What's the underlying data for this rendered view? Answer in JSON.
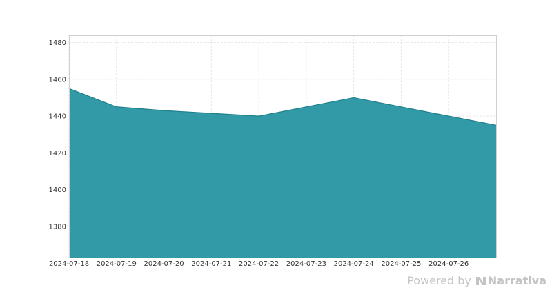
{
  "chart_data": {
    "type": "area",
    "x": [
      "2024-07-18",
      "2024-07-19",
      "2024-07-20",
      "2024-07-21",
      "2024-07-22",
      "2024-07-23",
      "2024-07-24",
      "2024-07-25",
      "2024-07-26",
      "2024-07-27"
    ],
    "x_tick_labels": [
      "2024-07-18",
      "2024-07-19",
      "2024-07-20",
      "2024-07-21",
      "2024-07-22",
      "2024-07-23",
      "2024-07-24",
      "2024-07-25",
      "2024-07-26"
    ],
    "series": [
      {
        "values": [
          1455,
          1445,
          1443,
          1441.5,
          1440,
          1445,
          1450,
          1445,
          1440,
          1435
        ]
      }
    ],
    "yticks": [
      1380,
      1400,
      1420,
      1440,
      1460,
      1480
    ],
    "ylim": [
      1363,
      1484
    ],
    "grid": true,
    "fill_color": "#2e97a4",
    "line_color": "#1f7f8c"
  },
  "branding": {
    "powered_by": "Powered by",
    "name": "Narrativa",
    "color": "#c4c4c4"
  }
}
